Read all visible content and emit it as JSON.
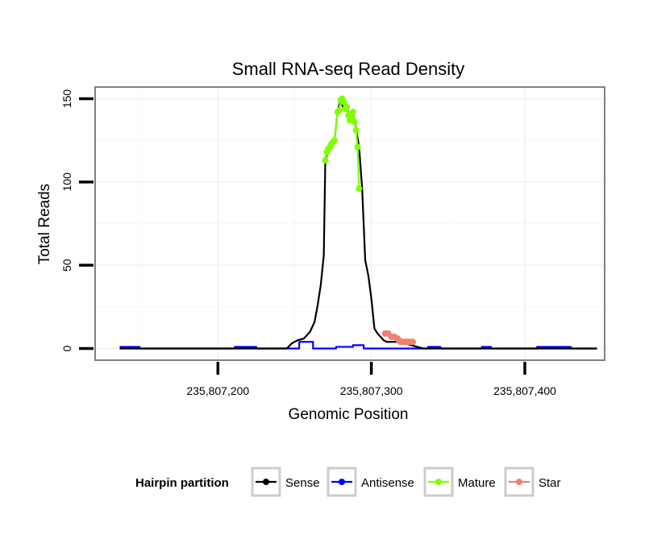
{
  "chart_data": {
    "type": "line",
    "title": "Small RNA-seq Read Density",
    "xlabel": "Genomic Position",
    "ylabel": "Total Reads",
    "xlim": [
      235807120,
      235807452
    ],
    "ylim": [
      -7,
      157
    ],
    "x_ticks": [
      235807200,
      235807300,
      235807400
    ],
    "x_tick_labels": [
      "235,807,200",
      "235,807,300",
      "235,807,400"
    ],
    "y_ticks": [
      0,
      50,
      100,
      150
    ],
    "y_tick_labels": [
      "0",
      "50",
      "100",
      "150"
    ],
    "grid": true,
    "legend_title": "Hairpin partition",
    "legend_position": "bottom",
    "series": [
      {
        "name": "Sense",
        "color": "#000000",
        "points": false,
        "x": [
          235807136,
          235807245,
          235807248,
          235807252,
          235807256,
          235807260,
          235807263,
          235807265,
          235807267,
          235807269,
          235807270,
          235807272,
          235807274,
          235807276,
          235807278,
          235807280,
          235807282,
          235807284,
          235807286,
          235807288,
          235807290,
          235807292,
          235807294,
          235807296,
          235807298,
          235807300,
          235807302,
          235807304,
          235807306,
          235807308,
          235807310,
          235807312,
          235807315,
          235807318,
          235807322,
          235807326,
          235807330,
          235807334,
          235807447
        ],
        "y": [
          0,
          0,
          3,
          5,
          6,
          10,
          16,
          26,
          38,
          56,
          113,
          119,
          123,
          125,
          142,
          150,
          143,
          145,
          138,
          142,
          132,
          121,
          96,
          53,
          44,
          30,
          12,
          9,
          7,
          5,
          4,
          4,
          4,
          4,
          3,
          2,
          1,
          0,
          0
        ]
      },
      {
        "name": "Antisense",
        "color": "#0000ff",
        "points": false,
        "x": [
          235807136,
          235807149,
          235807149,
          235807211,
          235807211,
          235807225,
          235807225,
          235807253,
          235807253,
          235807262,
          235807262,
          235807277,
          235807277,
          235807288,
          235807288,
          235807295,
          235807295,
          235807337,
          235807337,
          235807345,
          235807345,
          235807372,
          235807372,
          235807378,
          235807378,
          235807408,
          235807408,
          235807430,
          235807430,
          235807447
        ],
        "y": [
          1,
          1,
          0,
          0,
          1,
          1,
          0,
          0,
          4,
          4,
          0,
          0,
          1,
          1,
          2,
          2,
          0,
          0,
          1,
          1,
          0,
          0,
          1,
          1,
          0,
          0,
          1,
          1,
          0,
          0
        ]
      },
      {
        "name": "Mature",
        "color": "#7fff00",
        "points": true,
        "x": [
          235807270,
          235807271,
          235807272,
          235807273,
          235807274,
          235807275,
          235807276,
          235807278,
          235807279,
          235807280,
          235807281,
          235807282,
          235807283,
          235807284,
          235807285,
          235807286,
          235807287,
          235807288,
          235807289,
          235807290,
          235807291,
          235807292
        ],
        "y": [
          113,
          118,
          120,
          121,
          123,
          124,
          125,
          142,
          143,
          149,
          150,
          148,
          144,
          145,
          140,
          137,
          138,
          142,
          136,
          131,
          121,
          96
        ]
      },
      {
        "name": "Star",
        "color": "#f08070",
        "points": true,
        "x": [
          235807309,
          235807311,
          235807313,
          235807315,
          235807317,
          235807318,
          235807319,
          235807320,
          235807321,
          235807322,
          235807323,
          235807324,
          235807325,
          235807326,
          235807327
        ],
        "y": [
          9,
          9,
          7,
          7,
          6,
          5,
          4,
          4,
          4,
          4,
          4,
          4,
          4,
          4,
          4
        ]
      }
    ]
  }
}
